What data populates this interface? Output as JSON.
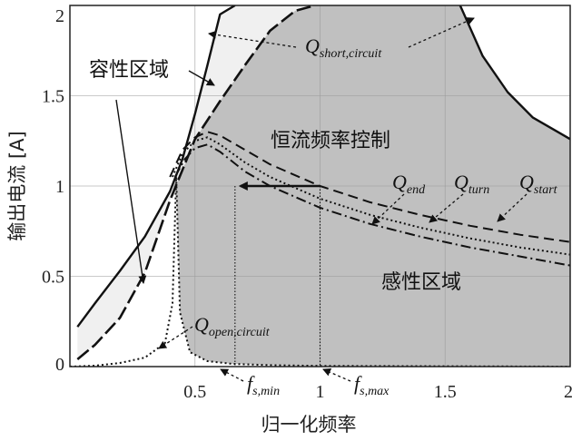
{
  "chart_data": {
    "type": "line",
    "title": "",
    "xlabel": "归一化频率",
    "ylabel": "输出电流 [A]",
    "xlim": [
      0.0,
      2.0
    ],
    "ylim": [
      0.0,
      2.0
    ],
    "x_ticks": [
      0.5,
      1.0,
      1.5,
      2.0
    ],
    "x_tick_labels": [
      "0.5",
      "1",
      "1.5",
      "2"
    ],
    "y_ticks": [
      0.0,
      0.5,
      1.0,
      1.5,
      2.0
    ],
    "y_tick_labels": [
      "0",
      "0.5",
      "1",
      "1.5",
      "2"
    ],
    "grid": true,
    "regions": [
      {
        "name": "容性区域",
        "fill": "#f0f0f0",
        "label_x": 0.2,
        "label_y": 1.67
      },
      {
        "name": "恒流频率控制",
        "fill": "#c0c0c0",
        "label_x": 0.88,
        "label_y": 1.25
      },
      {
        "name": "感性区域",
        "fill": "#c0c0c0",
        "label_x": 1.3,
        "label_y": 0.45
      }
    ],
    "series": [
      {
        "name": "Q_short,circuit",
        "style": "solid",
        "x": [
          0.03,
          0.1,
          0.2,
          0.3,
          0.4,
          0.45,
          0.5,
          0.55,
          0.6,
          0.66
        ],
        "y": [
          0.22,
          0.35,
          0.53,
          0.72,
          0.97,
          1.15,
          1.4,
          1.67,
          1.95,
          2.0
        ]
      },
      {
        "name": "Q_short,circuit",
        "style": "solid",
        "x": [
          1.56,
          1.65,
          1.75,
          1.85,
          1.95,
          2.0
        ],
        "y": [
          2.0,
          1.72,
          1.52,
          1.38,
          1.3,
          1.26
        ]
      },
      {
        "name": "",
        "style": "long-dash",
        "x": [
          0.03,
          0.1,
          0.2,
          0.3,
          0.4,
          0.5,
          0.6,
          0.7,
          0.8,
          0.9,
          0.98
        ],
        "y": [
          0.04,
          0.12,
          0.27,
          0.52,
          0.92,
          1.26,
          1.47,
          1.67,
          1.86,
          1.97,
          2.0
        ]
      },
      {
        "name": "Q_end",
        "style": "dash",
        "x": [
          0.4,
          0.45,
          0.5,
          0.55,
          0.6,
          0.7,
          0.8,
          1.0,
          1.2,
          1.4,
          1.6,
          1.8,
          2.0
        ],
        "y": [
          1.05,
          1.2,
          1.27,
          1.3,
          1.28,
          1.2,
          1.12,
          1.0,
          0.91,
          0.84,
          0.78,
          0.73,
          0.69
        ]
      },
      {
        "name": "Q_turn",
        "style": "dotted",
        "x": [
          0.41,
          0.45,
          0.5,
          0.55,
          0.6,
          0.7,
          0.8,
          1.0,
          1.2,
          1.4,
          1.6,
          1.8,
          2.0
        ],
        "y": [
          1.05,
          1.18,
          1.25,
          1.27,
          1.23,
          1.13,
          1.05,
          0.93,
          0.84,
          0.77,
          0.71,
          0.66,
          0.62
        ]
      },
      {
        "name": "Q_start",
        "style": "dash-dot",
        "x": [
          0.42,
          0.46,
          0.5,
          0.55,
          0.6,
          0.7,
          0.8,
          1.0,
          1.2,
          1.4,
          1.6,
          1.8,
          2.0
        ],
        "y": [
          1.05,
          1.15,
          1.21,
          1.23,
          1.19,
          1.08,
          1.0,
          0.88,
          0.79,
          0.72,
          0.66,
          0.61,
          0.56
        ]
      },
      {
        "name": "Q_open,circuit",
        "style": "dotted",
        "x": [
          0.0,
          0.1,
          0.2,
          0.3,
          0.38,
          0.41,
          0.425,
          0.44,
          0.48,
          0.55,
          0.65,
          0.8,
          1.0,
          1.5,
          2.0
        ],
        "y": [
          0.0,
          0.005,
          0.02,
          0.05,
          0.13,
          0.35,
          1.05,
          0.3,
          0.08,
          0.03,
          0.015,
          0.008,
          0.004,
          0.002,
          0.0
        ]
      }
    ],
    "vertical_markers": [
      {
        "name": "f_s,min",
        "x": 0.66,
        "y": 1.0
      },
      {
        "name": "f_s,max",
        "x": 1.0,
        "y": 1.0
      }
    ],
    "arrow": {
      "from": [
        1.0,
        1.0
      ],
      "to": [
        0.66,
        1.0
      ]
    },
    "labels": {
      "capacitive": "容性区域",
      "cc_control": "恒流频率控制",
      "inductive": "感性区域",
      "q_short": {
        "main": "Q",
        "sub": "short,circuit"
      },
      "q_end": {
        "main": "Q",
        "sub": "end"
      },
      "q_turn": {
        "main": "Q",
        "sub": "turn"
      },
      "q_start": {
        "main": "Q",
        "sub": "start"
      },
      "q_open": {
        "main": "Q",
        "sub": "open,circuit"
      },
      "fs_min": {
        "main": "f",
        "sub": "s,min"
      },
      "fs_max": {
        "main": "f",
        "sub": "s,max"
      }
    }
  }
}
